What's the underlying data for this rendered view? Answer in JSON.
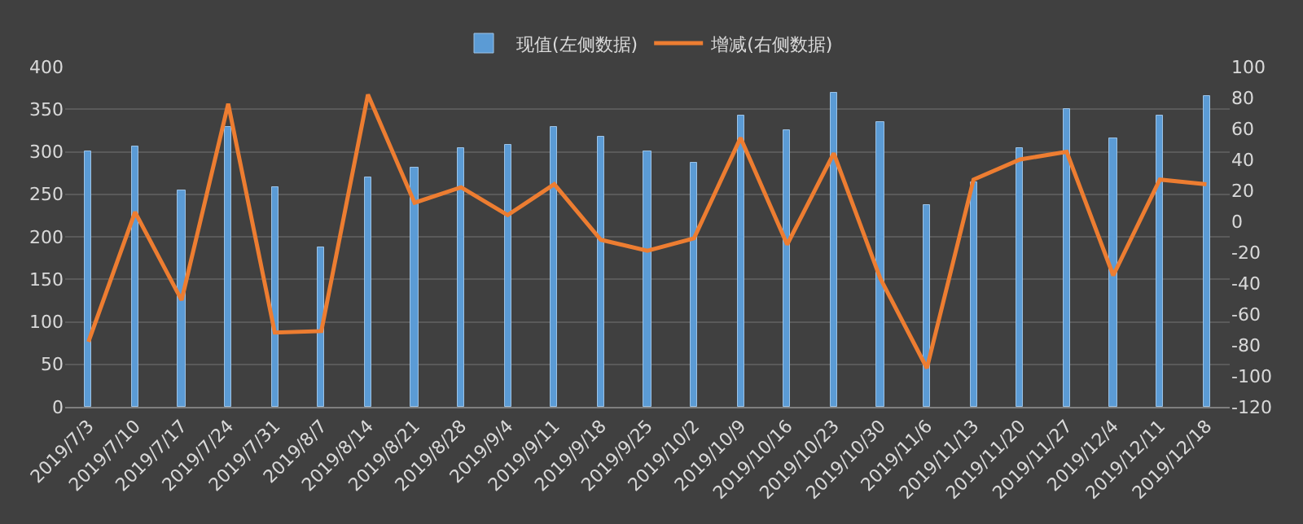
{
  "chart_data": {
    "type": "bar",
    "categories": [
      "2019/7/3",
      "2019/7/10",
      "2019/7/17",
      "2019/7/24",
      "2019/7/31",
      "2019/8/7",
      "2019/8/14",
      "2019/8/21",
      "2019/8/28",
      "2019/9/4",
      "2019/9/11",
      "2019/9/18",
      "2019/9/25",
      "2019/10/2",
      "2019/10/9",
      "2019/10/16",
      "2019/10/23",
      "2019/10/30",
      "2019/11/6",
      "2019/11/13",
      "2019/11/20",
      "2019/11/27",
      "2019/12/4",
      "2019/12/11",
      "2019/12/18"
    ],
    "series": [
      {
        "name": "现值(左侧数据)",
        "color": "#5b9bd5",
        "values": [
          300,
          307,
          255,
          330,
          258,
          188,
          270,
          282,
          304,
          308,
          330,
          318,
          300,
          288,
          342,
          325,
          370,
          335,
          238,
          264,
          304,
          350,
          315,
          342,
          365
        ]
      },
      {
        "name": "增减(右侧数据)",
        "type": "line",
        "axis": "y2",
        "color": "#ed7d31",
        "values": [
          -78,
          6,
          -51,
          76,
          -72,
          -71,
          82,
          12,
          22,
          4,
          24,
          -12,
          -19,
          -11,
          54,
          -15,
          44,
          -37,
          -95,
          27,
          40,
          45,
          -35,
          27,
          24
        ]
      }
    ],
    "ylim": [
      0,
      400
    ],
    "yticks": [
      0,
      50,
      100,
      150,
      200,
      250,
      300,
      350,
      400
    ],
    "y2lim": [
      -120,
      100
    ],
    "y2ticks": [
      -120,
      -100,
      -80,
      -60,
      -40,
      -20,
      0,
      20,
      40,
      60,
      80,
      100
    ],
    "grid": "y",
    "legend": "top",
    "marker": "none",
    "line_style": "solid"
  }
}
